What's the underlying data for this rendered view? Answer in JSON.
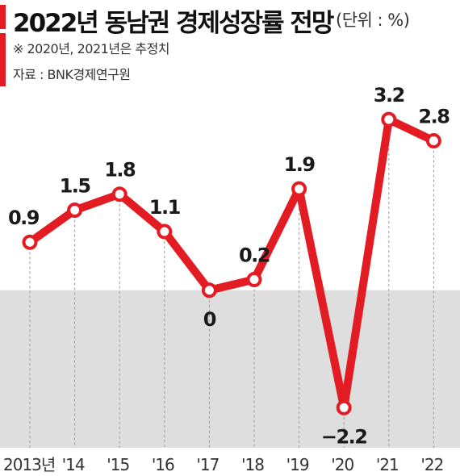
{
  "header": {
    "title": "2022년 동남권 경제성장률 전망",
    "unit": "(단위 : %)",
    "note": "※ 2020년, 2021년은 추정치",
    "source": "자료 : BNK경제연구원"
  },
  "colors": {
    "line": "#e31b23",
    "negative_area": "#dedede",
    "gridline": "#9a9a9a"
  },
  "chart_data": {
    "type": "line",
    "title": "2022년 동남권 경제성장률 전망",
    "categories": [
      "2013년",
      "'14",
      "'15",
      "'16",
      "'17",
      "'18",
      "'19",
      "'20",
      "'21",
      "'22"
    ],
    "values": [
      0.9,
      1.5,
      1.8,
      1.1,
      0,
      0.2,
      1.9,
      -2.2,
      3.2,
      2.8
    ],
    "labels": [
      "0.9",
      "1.5",
      "1.8",
      "1.1",
      "0",
      "0.2",
      "1.9",
      "−2.2",
      "3.2",
      "2.8"
    ],
    "ylim": [
      -2.8,
      3.7
    ],
    "negative_region_shaded": true,
    "grid": "vertical dashed lines at each category"
  }
}
